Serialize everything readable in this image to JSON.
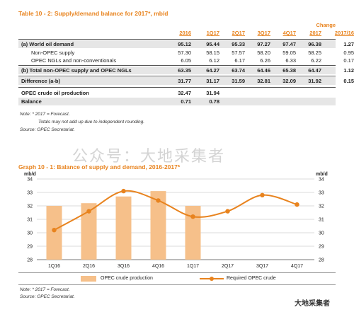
{
  "table": {
    "title": "Table 10 - 2: Supply/demand balance for 2017*, mb/d",
    "change_label": "Change",
    "columns": [
      "2016",
      "1Q17",
      "2Q17",
      "3Q17",
      "4Q17",
      "2017",
      "2017/16"
    ],
    "rows": [
      {
        "label": "(a) World oil demand",
        "values": [
          "95.12",
          "95.44",
          "95.33",
          "97.27",
          "97.47",
          "96.38",
          "1.27"
        ]
      },
      {
        "label": "Non-OPEC supply",
        "values": [
          "57.30",
          "58.15",
          "57.57",
          "58.20",
          "59.05",
          "58.25",
          "0.95"
        ]
      },
      {
        "label": "OPEC NGLs and non-conventionals",
        "values": [
          "6.05",
          "6.12",
          "6.17",
          "6.26",
          "6.33",
          "6.22",
          "0.17"
        ]
      },
      {
        "label": "(b) Total non-OPEC supply and OPEC NGLs",
        "values": [
          "63.35",
          "64.27",
          "63.74",
          "64.46",
          "65.38",
          "64.47",
          "1.12"
        ]
      },
      {
        "label": "Difference (a-b)",
        "values": [
          "31.77",
          "31.17",
          "31.59",
          "32.81",
          "32.09",
          "31.92",
          "0.15"
        ]
      },
      {
        "label": "OPEC crude oil production",
        "values": [
          "32.47",
          "31.94",
          "",
          "",
          "",
          "",
          ""
        ]
      },
      {
        "label": "Balance",
        "values": [
          "0.71",
          "0.78",
          "",
          "",
          "",
          "",
          ""
        ]
      }
    ],
    "notes": [
      "Note: * 2017 = Forecast.",
      "Totals may not add up due to independent rounding.",
      "Source: OPEC Secretariat."
    ]
  },
  "watermark": "公众号：大地采集者",
  "chart_data": {
    "type": "bar",
    "title": "Graph 10 - 1: Balance of supply and demand, 2016-2017*",
    "ylabel_left": "mb/d",
    "ylabel_right": "mb/d",
    "ylim": [
      28,
      34
    ],
    "yticks": [
      28,
      29,
      30,
      31,
      32,
      33,
      34
    ],
    "categories": [
      "1Q16",
      "2Q16",
      "3Q16",
      "4Q16",
      "1Q17",
      "2Q17",
      "3Q17",
      "4Q17"
    ],
    "series": [
      {
        "name": "OPEC crude production",
        "type": "bar",
        "color": "#f6c08a",
        "values": [
          32.0,
          32.2,
          32.7,
          33.1,
          32.0,
          null,
          null,
          null
        ]
      },
      {
        "name": "Required OPEC crude",
        "type": "line",
        "color": "#e8831e",
        "values": [
          30.2,
          31.6,
          33.1,
          32.4,
          31.2,
          31.6,
          32.8,
          32.1
        ]
      }
    ],
    "grid": true,
    "legend": "bottom",
    "notes": [
      "Note: * 2017 = Forecast.",
      "Source: OPEC Secretariat."
    ]
  },
  "logo_text": "大地采集者"
}
